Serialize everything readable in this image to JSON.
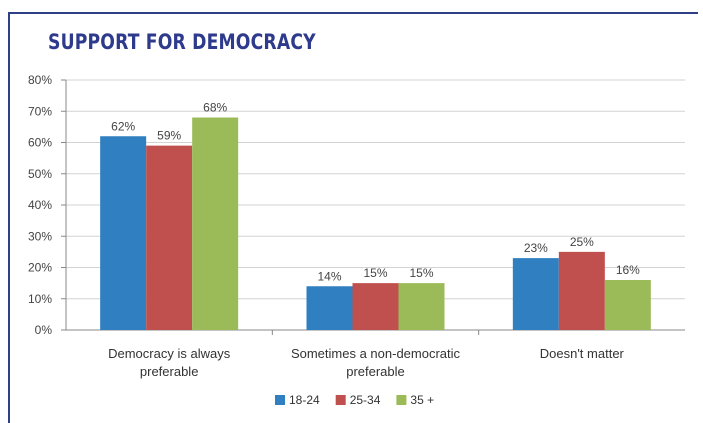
{
  "header": {
    "title": "SUPPORT FOR DEMOCRACY"
  },
  "chart_data": {
    "type": "bar",
    "categories": [
      [
        "Democracy is always",
        "preferable"
      ],
      [
        "Sometimes a non-democratic",
        "preferable"
      ],
      [
        "Doesn't matter"
      ]
    ],
    "series": [
      {
        "name": "18-24",
        "color": "#2f7fc1",
        "values": [
          62,
          14,
          23
        ],
        "labels": [
          "62%",
          "14%",
          "23%"
        ]
      },
      {
        "name": "25-34",
        "color": "#c0504d",
        "values": [
          59,
          15,
          25
        ],
        "labels": [
          "59%",
          "15%",
          "25%"
        ]
      },
      {
        "name": "35 +",
        "color": "#9bbb59",
        "values": [
          68,
          15,
          16
        ],
        "labels": [
          "68%",
          "15%",
          "16%"
        ]
      }
    ],
    "ylim": [
      0,
      80
    ],
    "yticks": [
      "0%",
      "10%",
      "20%",
      "30%",
      "40%",
      "50%",
      "60%",
      "70%",
      "80%"
    ],
    "gridlines": true,
    "legend": "bottom",
    "xlabel": "",
    "ylabel": ""
  }
}
